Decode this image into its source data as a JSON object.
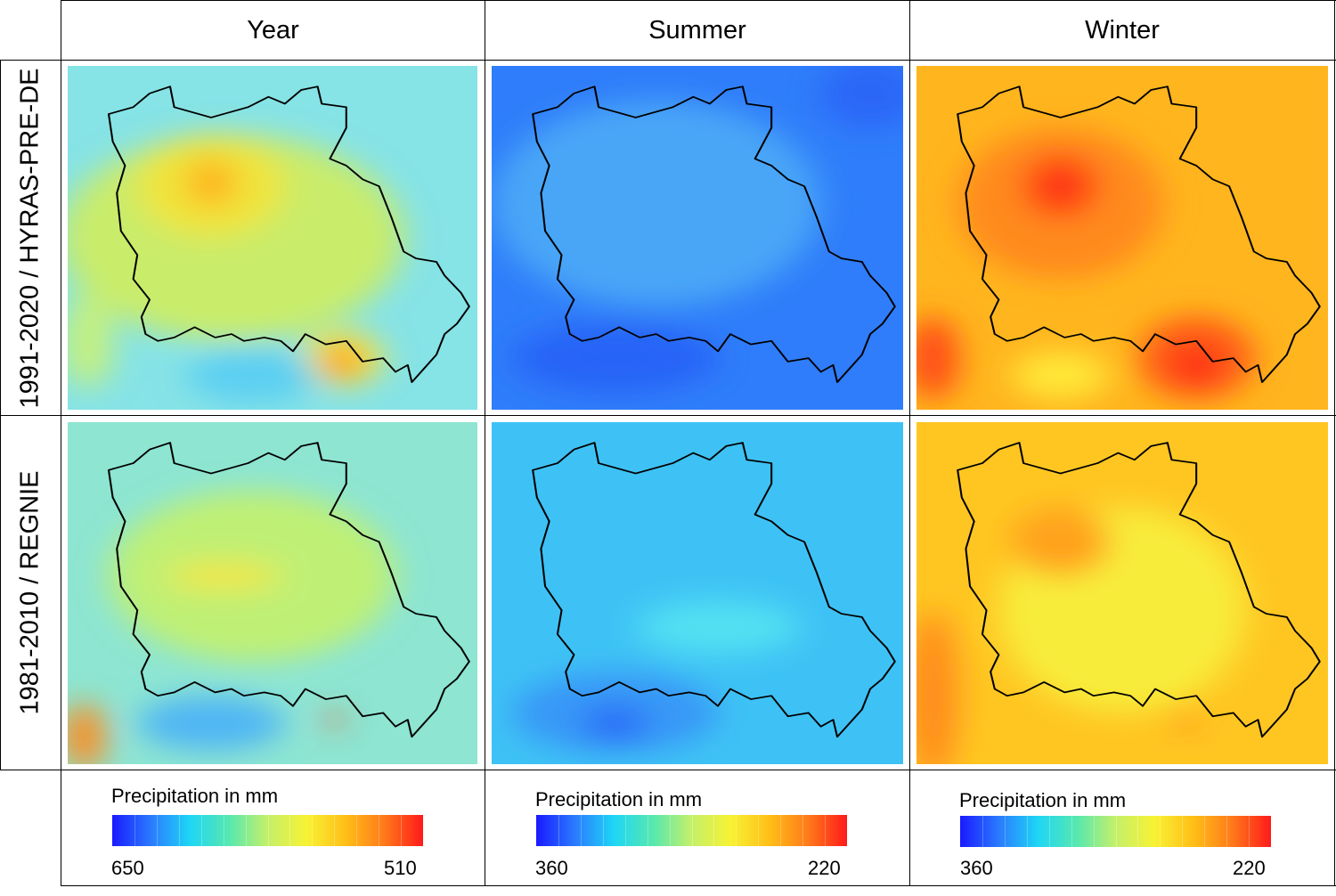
{
  "columns": [
    "Year",
    "Summer",
    "Winter"
  ],
  "rows": [
    "1991-2020 / HYRAS-PRE-DE",
    "1981-2010 / REGNIE"
  ],
  "legends": [
    {
      "title": "Precipitation in mm",
      "min_label": "650",
      "max_label": "510"
    },
    {
      "title": "Precipitation in mm",
      "min_label": "360",
      "max_label": "220"
    },
    {
      "title": "Precipitation in mm",
      "min_label": "360",
      "max_label": "220"
    }
  ],
  "colorscale": [
    "#1a1aff",
    "#2a7bff",
    "#1ed6f5",
    "#56e8b0",
    "#c4f06a",
    "#f7f234",
    "#ffbf17",
    "#ff7a1a",
    "#ff1a1a"
  ],
  "maps": [
    {
      "name": "year-1991-2020",
      "base": "#86e3e6",
      "blobs": [
        [
          "#c9ec6b",
          40,
          50,
          42,
          30
        ],
        [
          "#f0e43a",
          35,
          35,
          18,
          15
        ],
        [
          "#ffb21c",
          35,
          34,
          6,
          7
        ],
        [
          "#f4e840",
          67,
          85,
          10,
          8
        ],
        [
          "#ff9a1e",
          67,
          86,
          5,
          5
        ],
        [
          "#5ccff2",
          45,
          90,
          16,
          8
        ],
        [
          "#c6f07c",
          5,
          80,
          6,
          14
        ]
      ]
    },
    {
      "name": "summer-1991-2020",
      "base": "#2f7dfa",
      "blobs": [
        [
          "#49a6f7",
          40,
          40,
          40,
          30
        ],
        [
          "#2563f7",
          30,
          85,
          25,
          10
        ],
        [
          "#2a66f7",
          92,
          8,
          12,
          10
        ]
      ]
    },
    {
      "name": "winter-1991-2020",
      "base": "#ffb51e",
      "blobs": [
        [
          "#ff8a1c",
          35,
          40,
          25,
          22
        ],
        [
          "#ff3a16",
          35,
          35,
          9,
          9
        ],
        [
          "#ff5a18",
          68,
          85,
          14,
          12
        ],
        [
          "#ff1f16",
          68,
          87,
          5,
          5
        ],
        [
          "#ffe838",
          35,
          90,
          12,
          7
        ],
        [
          "#ff4a18",
          4,
          85,
          6,
          12
        ]
      ]
    },
    {
      "name": "year-1981-2010",
      "base": "#8de5d2",
      "blobs": [
        [
          "#bff074",
          45,
          45,
          35,
          25
        ],
        [
          "#f4e640",
          38,
          45,
          14,
          4
        ],
        [
          "#4fb6f4",
          35,
          88,
          18,
          8
        ],
        [
          "#ff8a1e",
          4,
          92,
          5,
          10
        ],
        [
          "#ff4020",
          65,
          87,
          2,
          2
        ]
      ]
    },
    {
      "name": "summer-1981-2010",
      "base": "#3ec2f5",
      "blobs": [
        [
          "#3898f7",
          30,
          85,
          25,
          12
        ],
        [
          "#2a6bf7",
          30,
          88,
          8,
          5
        ],
        [
          "#52e0f2",
          55,
          60,
          20,
          8
        ]
      ]
    },
    {
      "name": "winter-1981-2010",
      "base": "#ffc622",
      "blobs": [
        [
          "#f8ec3a",
          50,
          55,
          30,
          30
        ],
        [
          "#ffa21c",
          35,
          35,
          12,
          10
        ],
        [
          "#ff8a1c",
          4,
          80,
          6,
          25
        ],
        [
          "#ff3a18",
          65,
          87,
          2,
          2
        ]
      ]
    }
  ]
}
